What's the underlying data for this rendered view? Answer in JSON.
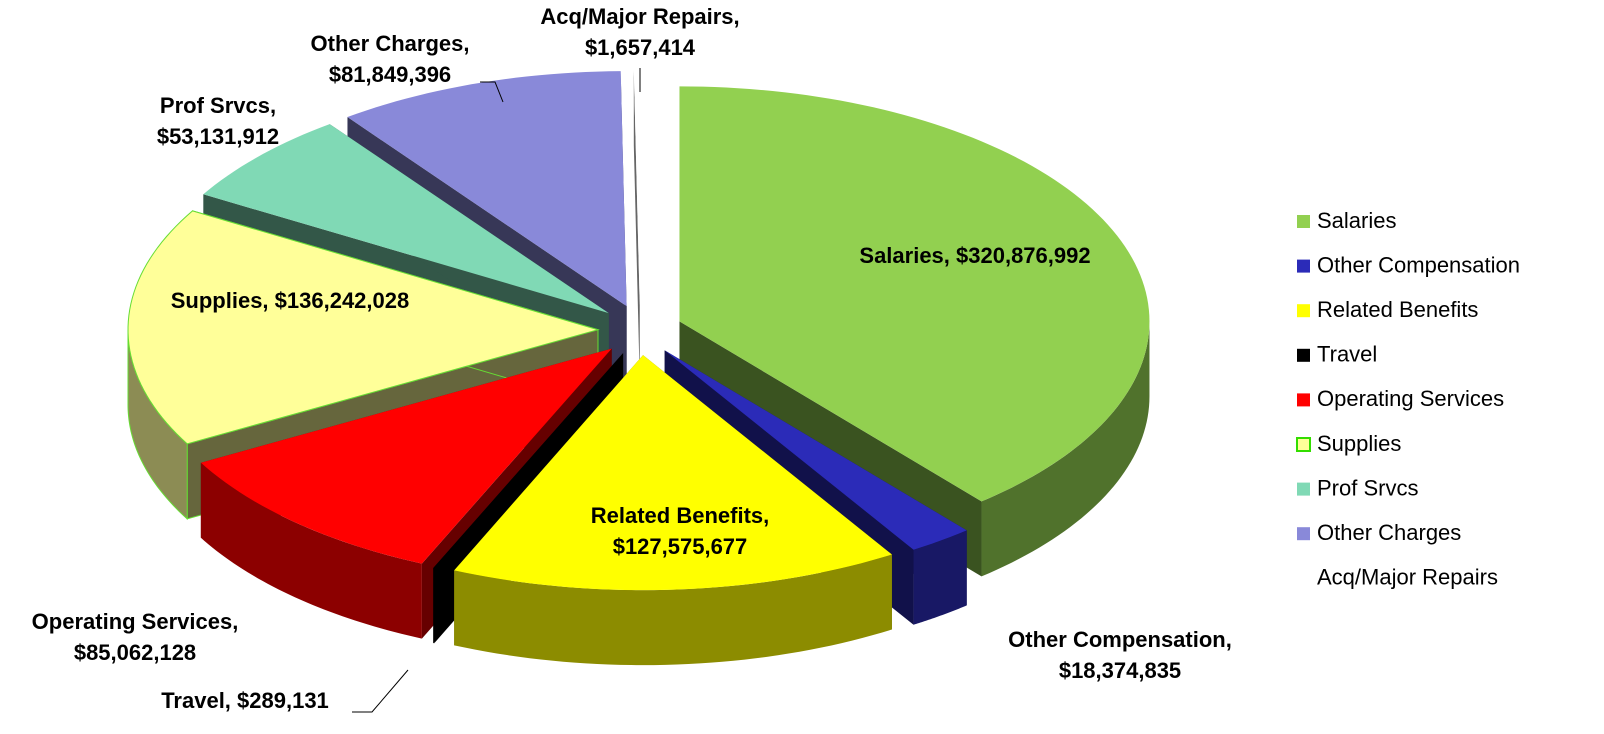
{
  "chart_data": {
    "type": "pie",
    "categories": [
      "Salaries",
      "Other Compensation",
      "Related Benefits",
      "Travel",
      "Operating Services",
      "Supplies",
      "Prof Srvcs",
      "Other Charges",
      "Acq/Major Repairs"
    ],
    "values": [
      320876992,
      18374835,
      127575677,
      289131,
      85062128,
      136242028,
      53131912,
      81849396,
      1657414
    ],
    "value_labels": [
      "Salaries, $320,876,992",
      "Other Compensation, $18,374,835",
      "Related Benefits, $127,575,677",
      "Travel, $289,131",
      "Operating Services, $85,062,128",
      "Supplies, $136,242,028",
      "Prof Srvcs, $53,131,912",
      "Other Charges, $81,849,396",
      "Acq/Major Repairs, $1,657,414"
    ],
    "colors": [
      "#92d050",
      "#2b2bb8",
      "#ffff00",
      "#000000",
      "#ff0000",
      "#ffff99",
      "#80d9b5",
      "#8989d9",
      "#ffffff"
    ],
    "legend": "right"
  }
}
